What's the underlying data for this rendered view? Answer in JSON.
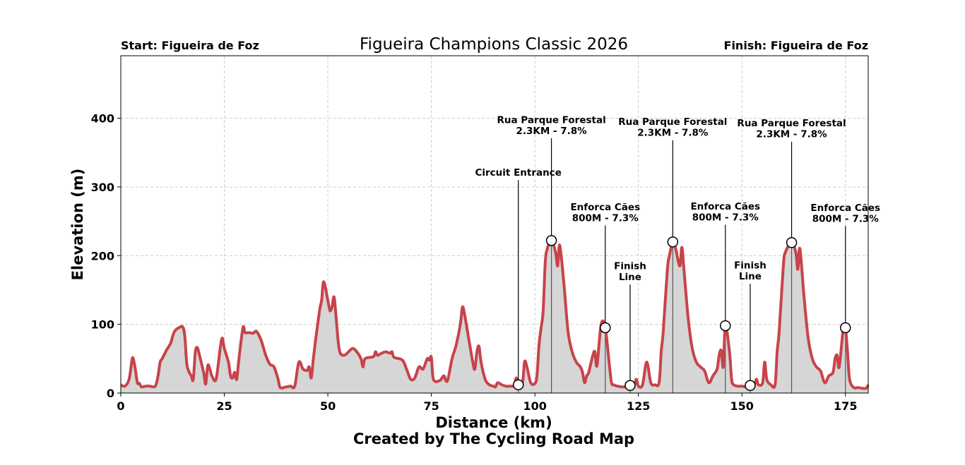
{
  "chart_data": {
    "type": "area",
    "title": "Figueira Champions Classic 2026",
    "start_label": "Start: Figueira de Foz",
    "finish_label": "Finish: Figueira de Foz",
    "xlabel": "Distance (km)",
    "ylabel": "Elevation (m)",
    "credit": "Created by The Cycling Road Map",
    "xlim": [
      0,
      180.5
    ],
    "ylim": [
      0,
      491
    ],
    "xticks": [
      0,
      25,
      50,
      75,
      100,
      125,
      150,
      175
    ],
    "yticks": [
      0,
      100,
      200,
      300,
      400
    ],
    "grid": true,
    "colors": {
      "line": "#c8434a",
      "fill": "#d6d6d6",
      "grid": "#cccccc"
    },
    "profile": [
      [
        0,
        12
      ],
      [
        1,
        10
      ],
      [
        2,
        20
      ],
      [
        2.7,
        48
      ],
      [
        3,
        50
      ],
      [
        3.5,
        35
      ],
      [
        4,
        15
      ],
      [
        4.5,
        14
      ],
      [
        5,
        9
      ],
      [
        6,
        10
      ],
      [
        7,
        10
      ],
      [
        8,
        9
      ],
      [
        8.5,
        12
      ],
      [
        9,
        25
      ],
      [
        9.5,
        45
      ],
      [
        10,
        50
      ],
      [
        11,
        62
      ],
      [
        12,
        72
      ],
      [
        12.5,
        82
      ],
      [
        13,
        90
      ],
      [
        14,
        95
      ],
      [
        15,
        96
      ],
      [
        15.5,
        80
      ],
      [
        16,
        40
      ],
      [
        17,
        25
      ],
      [
        17.5,
        20
      ],
      [
        18,
        60
      ],
      [
        18.5,
        66
      ],
      [
        19,
        55
      ],
      [
        20,
        30
      ],
      [
        20.5,
        13
      ],
      [
        21,
        40
      ],
      [
        21.5,
        35
      ],
      [
        22,
        25
      ],
      [
        23,
        20
      ],
      [
        24,
        65
      ],
      [
        24.5,
        80
      ],
      [
        25,
        65
      ],
      [
        26,
        45
      ],
      [
        26.5,
        25
      ],
      [
        27,
        22
      ],
      [
        27.5,
        30
      ],
      [
        28,
        20
      ],
      [
        28.5,
        48
      ],
      [
        29.5,
        95
      ],
      [
        30,
        88
      ],
      [
        31,
        88
      ],
      [
        32,
        87
      ],
      [
        32.5,
        90
      ],
      [
        33,
        88
      ],
      [
        34,
        75
      ],
      [
        35,
        55
      ],
      [
        36,
        42
      ],
      [
        37,
        38
      ],
      [
        38,
        20
      ],
      [
        38.5,
        8
      ],
      [
        40,
        9
      ],
      [
        41,
        10
      ],
      [
        42,
        10
      ],
      [
        43,
        45
      ],
      [
        44,
        35
      ],
      [
        45,
        33
      ],
      [
        45.5,
        38
      ],
      [
        46,
        22
      ],
      [
        46.5,
        50
      ],
      [
        47,
        75
      ],
      [
        48,
        120
      ],
      [
        48.5,
        135
      ],
      [
        49,
        162
      ],
      [
        50,
        135
      ],
      [
        50.5,
        120
      ],
      [
        51,
        125
      ],
      [
        51.5,
        140
      ],
      [
        52,
        110
      ],
      [
        52.5,
        75
      ],
      [
        53,
        58
      ],
      [
        54,
        55
      ],
      [
        55,
        60
      ],
      [
        56,
        65
      ],
      [
        57,
        60
      ],
      [
        58,
        50
      ],
      [
        58.5,
        38
      ],
      [
        59,
        50
      ],
      [
        61,
        53
      ],
      [
        61.5,
        60
      ],
      [
        62,
        55
      ],
      [
        63,
        58
      ],
      [
        64,
        60
      ],
      [
        65,
        58
      ],
      [
        65.5,
        60
      ],
      [
        66,
        52
      ],
      [
        68,
        48
      ],
      [
        69,
        35
      ],
      [
        70,
        20
      ],
      [
        71,
        22
      ],
      [
        72,
        38
      ],
      [
        73,
        35
      ],
      [
        74,
        50
      ],
      [
        74.5,
        48
      ],
      [
        75,
        52
      ],
      [
        75.5,
        20
      ],
      [
        77,
        18
      ],
      [
        78,
        25
      ],
      [
        78.5,
        18
      ],
      [
        79,
        20
      ],
      [
        80,
        50
      ],
      [
        81,
        70
      ],
      [
        82,
        100
      ],
      [
        82.5,
        125
      ],
      [
        83,
        115
      ],
      [
        84,
        80
      ],
      [
        85,
        45
      ],
      [
        85.5,
        35
      ],
      [
        86,
        60
      ],
      [
        86.5,
        68
      ],
      [
        87,
        45
      ],
      [
        88,
        20
      ],
      [
        89,
        12
      ],
      [
        90,
        10
      ],
      [
        90.5,
        9
      ],
      [
        91,
        15
      ],
      [
        92,
        12
      ],
      [
        93,
        10
      ],
      [
        94,
        10
      ],
      [
        95,
        11
      ],
      [
        95.5,
        22
      ],
      [
        96,
        12
      ],
      [
        97,
        15
      ],
      [
        97.5,
        45
      ],
      [
        98,
        40
      ],
      [
        99,
        15
      ],
      [
        100,
        14
      ],
      [
        100.5,
        25
      ],
      [
        101,
        70
      ],
      [
        101.5,
        95
      ],
      [
        102,
        120
      ],
      [
        102.5,
        190
      ],
      [
        103,
        210
      ],
      [
        104,
        222
      ],
      [
        105,
        205
      ],
      [
        105.5,
        185
      ],
      [
        106,
        215
      ],
      [
        107,
        160
      ],
      [
        108,
        90
      ],
      [
        109,
        60
      ],
      [
        110,
        45
      ],
      [
        111,
        38
      ],
      [
        111.5,
        30
      ],
      [
        112,
        15
      ],
      [
        112.5,
        25
      ],
      [
        113,
        30
      ],
      [
        114,
        55
      ],
      [
        114.5,
        60
      ],
      [
        115,
        40
      ],
      [
        116,
        100
      ],
      [
        117,
        95
      ],
      [
        118,
        40
      ],
      [
        118.5,
        15
      ],
      [
        119,
        12
      ],
      [
        120,
        10
      ],
      [
        121,
        9
      ],
      [
        122,
        9
      ],
      [
        123,
        11
      ],
      [
        124,
        12
      ],
      [
        124.5,
        20
      ],
      [
        125,
        10
      ],
      [
        126,
        12
      ],
      [
        127,
        45
      ],
      [
        128,
        15
      ],
      [
        129,
        12
      ],
      [
        130,
        15
      ],
      [
        130.5,
        60
      ],
      [
        131,
        90
      ],
      [
        132,
        180
      ],
      [
        132.5,
        200
      ],
      [
        133.3,
        220
      ],
      [
        134,
        210
      ],
      [
        135,
        185
      ],
      [
        135.5,
        212
      ],
      [
        136,
        180
      ],
      [
        137,
        110
      ],
      [
        138,
        65
      ],
      [
        139,
        45
      ],
      [
        140,
        38
      ],
      [
        141,
        32
      ],
      [
        142,
        15
      ],
      [
        143,
        25
      ],
      [
        144,
        35
      ],
      [
        144.5,
        55
      ],
      [
        145,
        62
      ],
      [
        145.5,
        38
      ],
      [
        146,
        98
      ],
      [
        147,
        60
      ],
      [
        147.5,
        20
      ],
      [
        148,
        12
      ],
      [
        149,
        10
      ],
      [
        150,
        10
      ],
      [
        151,
        9
      ],
      [
        152,
        11
      ],
      [
        153,
        12
      ],
      [
        153.5,
        20
      ],
      [
        154,
        12
      ],
      [
        155,
        15
      ],
      [
        155.5,
        45
      ],
      [
        156,
        20
      ],
      [
        157,
        12
      ],
      [
        158,
        12
      ],
      [
        158.5,
        60
      ],
      [
        159,
        90
      ],
      [
        160,
        185
      ],
      [
        160.5,
        205
      ],
      [
        162,
        219
      ],
      [
        163,
        205
      ],
      [
        163.5,
        180
      ],
      [
        164,
        210
      ],
      [
        165,
        140
      ],
      [
        166,
        80
      ],
      [
        167,
        50
      ],
      [
        168,
        38
      ],
      [
        169,
        32
      ],
      [
        170,
        15
      ],
      [
        171,
        25
      ],
      [
        172,
        30
      ],
      [
        172.5,
        50
      ],
      [
        173,
        55
      ],
      [
        173.5,
        38
      ],
      [
        174.5,
        95
      ],
      [
        175,
        95
      ],
      [
        175.5,
        60
      ],
      [
        176,
        20
      ],
      [
        177,
        8
      ],
      [
        178,
        8
      ],
      [
        179,
        7
      ],
      [
        180,
        7
      ],
      [
        180.5,
        12
      ]
    ],
    "annotations": [
      {
        "km": 96,
        "elev": 12,
        "lines": [
          "Circuit Entrance"
        ]
      },
      {
        "km": 104,
        "elev": 222,
        "lines": [
          "Rua Parque Forestal",
          "2.3KM - 7.8%"
        ]
      },
      {
        "km": 117,
        "elev": 95,
        "lines": [
          "Enforca Cães",
          "800M - 7.3%"
        ]
      },
      {
        "km": 123,
        "elev": 11,
        "lines": [
          "Finish",
          "Line"
        ]
      },
      {
        "km": 133.3,
        "elev": 220,
        "lines": [
          "Rua Parque Forestal",
          "2.3KM - 7.8%"
        ]
      },
      {
        "km": 146,
        "elev": 98,
        "lines": [
          "Enforca Cães",
          "800M - 7.3%"
        ]
      },
      {
        "km": 152,
        "elev": 11,
        "lines": [
          "Finish",
          "Line"
        ]
      },
      {
        "km": 162,
        "elev": 219,
        "lines": [
          "Rua Parque Forestal",
          "2.3KM - 7.8%"
        ]
      },
      {
        "km": 175,
        "elev": 95,
        "lines": [
          "Enforca Cães",
          "800M - 7.3%"
        ]
      }
    ]
  }
}
